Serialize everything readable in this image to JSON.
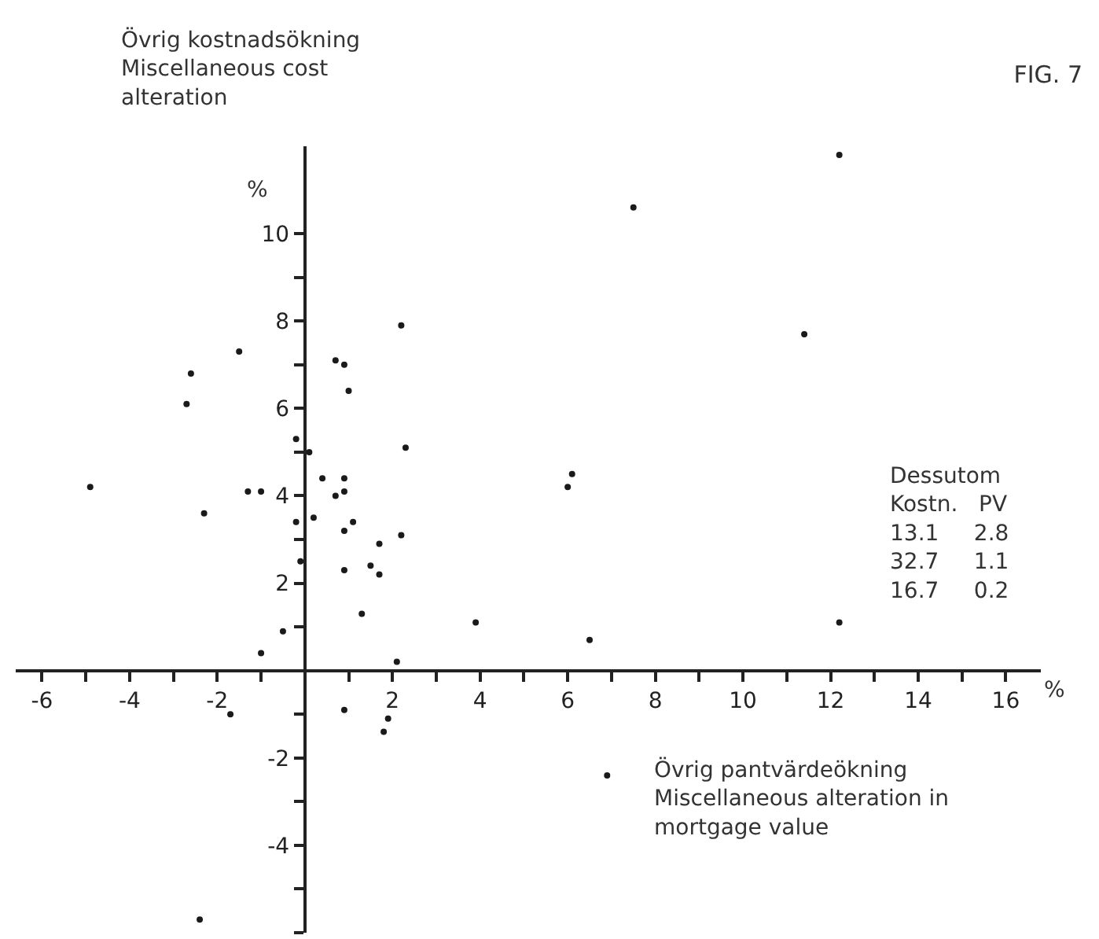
{
  "chart_data": {
    "type": "scatter",
    "title": "FIG. 7",
    "ylabel": "Övrig kostnadsökning\nMiscellaneous cost\nalteration",
    "xlabel": "Övrig pantvärdeökning\nMiscellaneous alteration in\nmortgage value",
    "annotations": [
      "%",
      "%",
      "Dessutom\nKostn.   PV\n13.1     2.8\n32.7     1.1\n16.7     0.2"
    ],
    "marker": "circle",
    "grid": false,
    "xlim": [
      -6.6,
      16.8
    ],
    "ylim": [
      -6,
      12
    ],
    "xticks": [
      -6,
      {
        "value": -5,
        "label": null
      },
      -4,
      {
        "value": -3,
        "label": null
      },
      -2,
      {
        "value": -1,
        "label": null
      },
      {
        "value": 0,
        "label": null
      },
      {
        "value": 1,
        "label": null
      },
      2,
      {
        "value": 3,
        "label": null
      },
      4,
      {
        "value": 5,
        "label": null
      },
      6,
      {
        "value": 7,
        "label": null
      },
      8,
      {
        "value": 9,
        "label": null
      },
      10,
      {
        "value": 11,
        "label": null
      },
      12,
      {
        "value": 13,
        "label": null
      },
      14,
      {
        "value": 15,
        "label": null
      },
      16
    ],
    "yticks": [
      {
        "value": -6,
        "label": null
      },
      {
        "value": -5,
        "label": null
      },
      -4,
      {
        "value": -3,
        "label": null
      },
      -2,
      {
        "value": -1,
        "label": null
      },
      {
        "value": 1,
        "label": null
      },
      2,
      {
        "value": 3,
        "label": null
      },
      4,
      {
        "value": 5,
        "label": null
      },
      6,
      {
        "value": 7,
        "label": null
      },
      8,
      {
        "value": 9,
        "label": null
      },
      10
    ],
    "series": [
      {
        "color": "#1a1a1a",
        "x": [
          -2.6,
          -2.7,
          -1.5,
          -4.9,
          -2.3,
          -1.3,
          -1.0,
          -0.2,
          -0.2,
          0.1,
          -0.1,
          -0.5,
          -1.0,
          0.7,
          0.9,
          1.0,
          2.2,
          2.3,
          0.4,
          0.9,
          0.9,
          0.7,
          0.2,
          1.1,
          0.9,
          2.2,
          1.7,
          1.5,
          1.7,
          0.9,
          1.3,
          2.1,
          11.4,
          6.1,
          6.0,
          3.9,
          6.5,
          12.2,
          12.2,
          7.5,
          -1.7,
          0.9,
          1.9,
          1.8,
          6.9,
          -2.4
        ],
        "values": [
          6.8,
          6.1,
          7.3,
          4.2,
          3.6,
          4.1,
          4.1,
          3.4,
          5.3,
          5.0,
          2.5,
          0.9,
          0.4,
          7.1,
          7.0,
          6.4,
          7.9,
          5.1,
          4.4,
          4.4,
          4.1,
          4.0,
          3.5,
          3.4,
          3.2,
          3.1,
          2.9,
          2.4,
          2.2,
          2.3,
          1.3,
          0.2,
          7.7,
          4.5,
          4.2,
          1.1,
          0.7,
          1.1,
          11.8,
          10.6,
          -1.0,
          -0.9,
          -1.1,
          -1.4,
          -2.4,
          -5.7
        ]
      }
    ]
  }
}
